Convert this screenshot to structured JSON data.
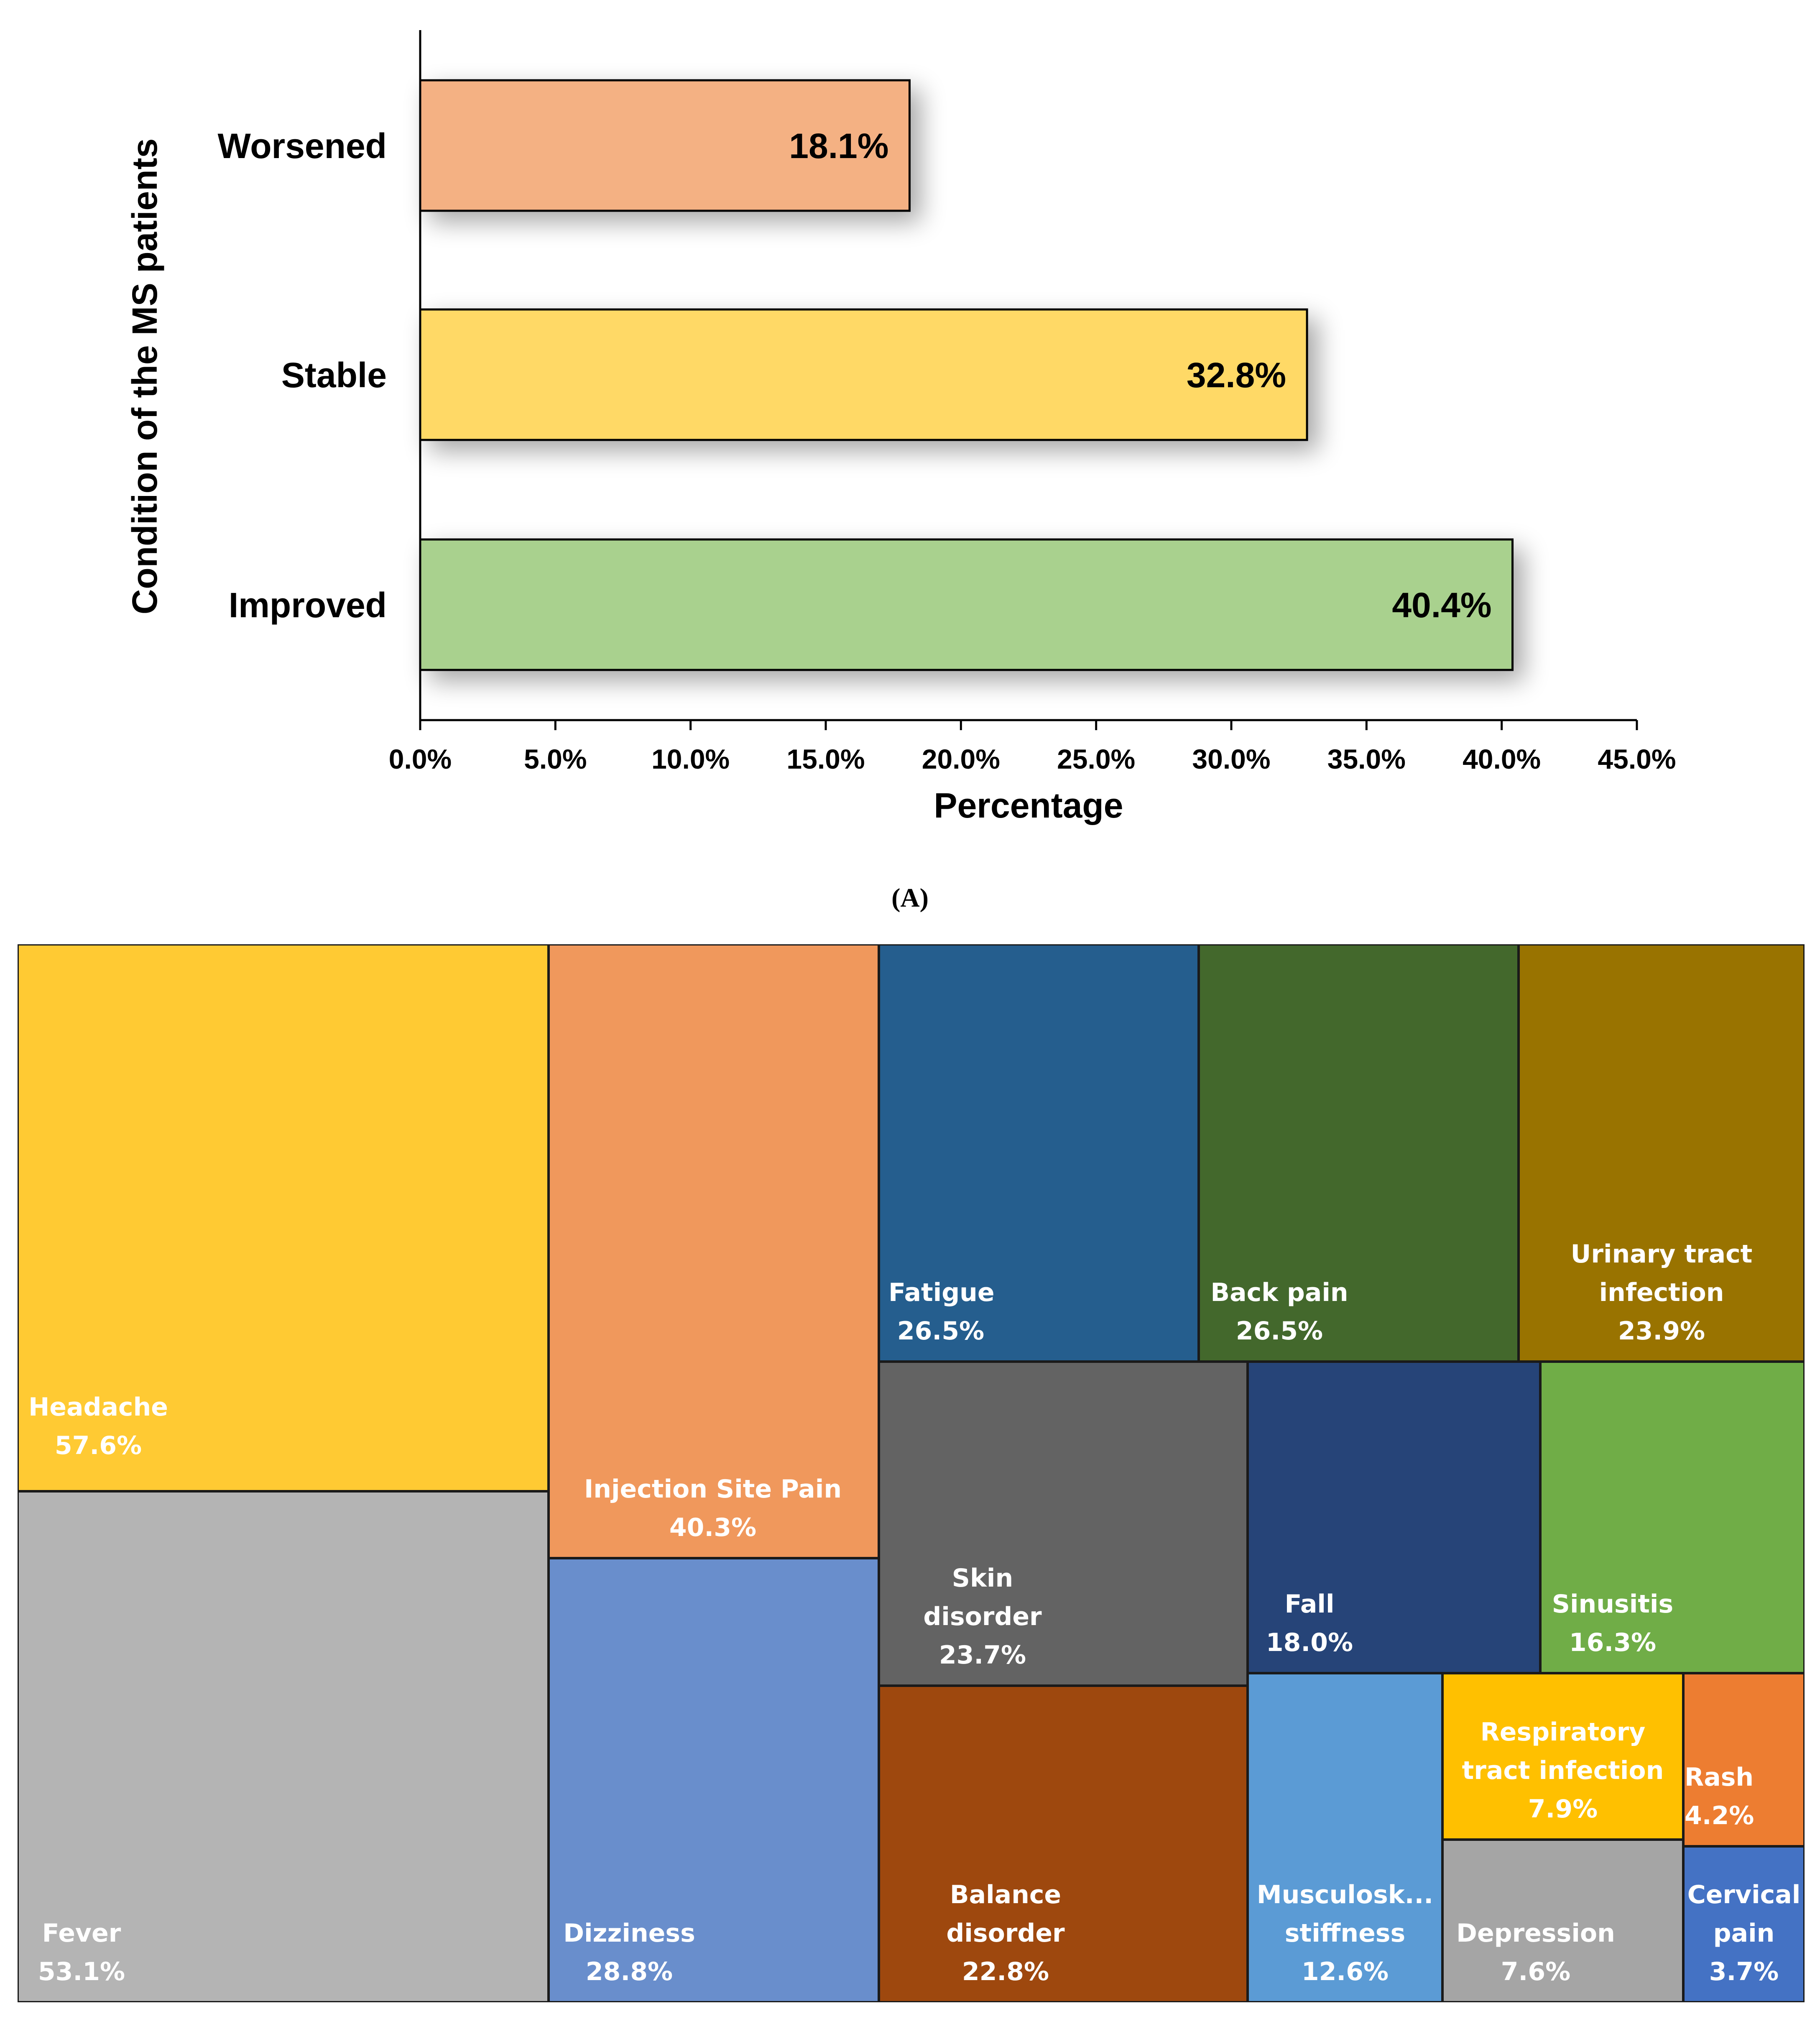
{
  "chart_data": [
    {
      "type": "bar",
      "orientation": "horizontal",
      "categories": [
        "Worsened",
        "Stable",
        "Improved"
      ],
      "values": [
        18.1,
        32.8,
        40.4
      ],
      "value_labels": [
        "18.1%",
        "32.8%",
        "40.4%"
      ],
      "colors": [
        "#F4B183",
        "#FFD966",
        "#A9D18E"
      ],
      "xlabel": "Percentage",
      "ylabel": "Condition of the MS patients",
      "xlim": [
        0,
        45
      ],
      "x_ticks": [
        "0.0%",
        "5.0%",
        "10.0%",
        "15.0%",
        "20.0%",
        "25.0%",
        "30.0%",
        "35.0%",
        "40.0%",
        "45.0%"
      ],
      "caption": "(A)"
    },
    {
      "type": "treemap",
      "items": [
        {
          "name": "Headache",
          "value": 57.6,
          "label": "57.6%",
          "color": "#FFCA33"
        },
        {
          "name": "Fever",
          "value": 53.1,
          "label": "53.1%",
          "color": "#B4B4B4"
        },
        {
          "name": "Injection Site Pain",
          "value": 40.3,
          "label": "40.3%",
          "color": "#F0985C"
        },
        {
          "name": "Dizziness",
          "value": 28.8,
          "label": "28.8%",
          "color": "#698ECC"
        },
        {
          "name": "Fatigue",
          "value": 26.5,
          "label": "26.5%",
          "color": "#255E8E"
        },
        {
          "name": "Back pain",
          "value": 26.5,
          "label": "26.5%",
          "color": "#43682C"
        },
        {
          "name": "Urinary tract infection",
          "value": 23.9,
          "label": "23.9%",
          "color": "#997300"
        },
        {
          "name": "Skin disorder",
          "value": 23.7,
          "label": "23.7%",
          "color": "#636363"
        },
        {
          "name": "Balance disorder",
          "value": 22.8,
          "label": "22.8%",
          "color": "#9E480E"
        },
        {
          "name": "Fall",
          "value": 18.0,
          "label": "18.0%",
          "color": "#264478"
        },
        {
          "name": "Sinusitis",
          "value": 16.3,
          "label": "16.3%",
          "color": "#70AD47"
        },
        {
          "name": "Musculosk... stiffness",
          "value": 12.6,
          "label": "12.6%",
          "color": "#5B9BD5"
        },
        {
          "name": "Respiratory tract infection",
          "value": 7.9,
          "label": "7.9%",
          "color": "#FFC000"
        },
        {
          "name": "Depression",
          "value": 7.6,
          "label": "7.6%",
          "color": "#A5A5A5"
        },
        {
          "name": "Rash",
          "value": 4.2,
          "label": "4.2%",
          "color": "#ED7D31"
        },
        {
          "name": "Cervical pain",
          "value": 3.7,
          "label": "3.7%",
          "color": "#4472C4"
        }
      ]
    }
  ]
}
